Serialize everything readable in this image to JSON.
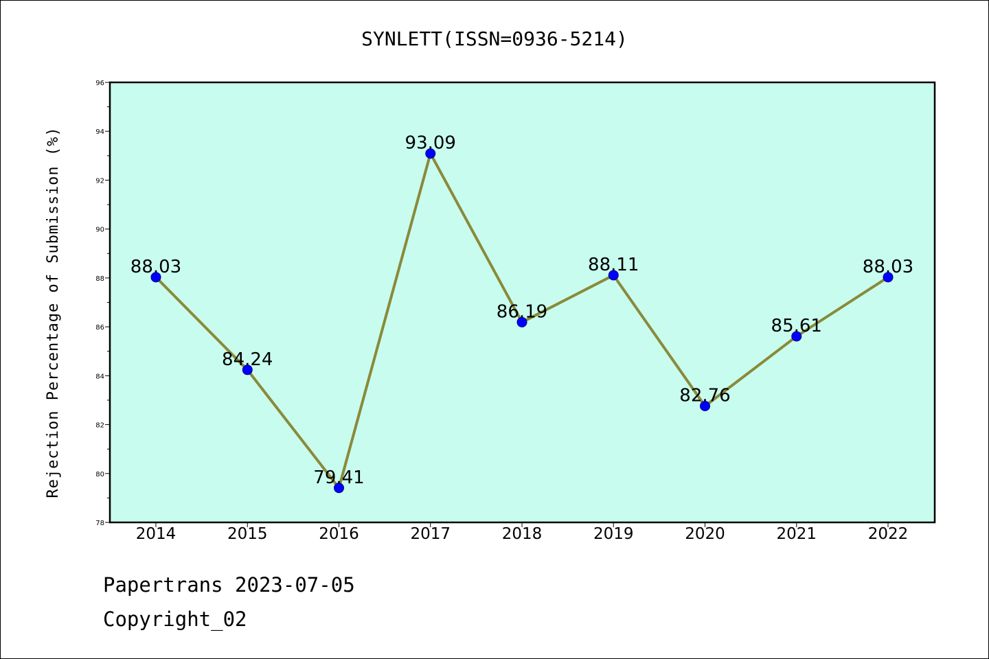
{
  "chart_data": {
    "type": "line",
    "title": "SYNLETT(ISSN=0936-5214)",
    "xlabel": "",
    "ylabel": "Rejection Percentage of Submission (%)",
    "ylim": [
      78,
      96
    ],
    "yticks": [
      78,
      80,
      82,
      84,
      86,
      88,
      90,
      92,
      94,
      96
    ],
    "categories": [
      "2014",
      "2015",
      "2016",
      "2017",
      "2018",
      "2019",
      "2020",
      "2021",
      "2022"
    ],
    "values": [
      88.03,
      84.24,
      79.41,
      93.09,
      86.19,
      88.11,
      82.76,
      85.61,
      88.03
    ],
    "data_labels": [
      "88.03",
      "84.24",
      "79.41",
      "93.09",
      "86.19",
      "88.11",
      "82.76",
      "85.61",
      "88.03"
    ],
    "grid": false,
    "colors": {
      "background": "#c8fcee",
      "line": "#8a8a3a",
      "marker": "#0000ff"
    }
  },
  "footer": {
    "line1": "Papertrans 2023-07-05",
    "line2": "Copyright_02"
  }
}
